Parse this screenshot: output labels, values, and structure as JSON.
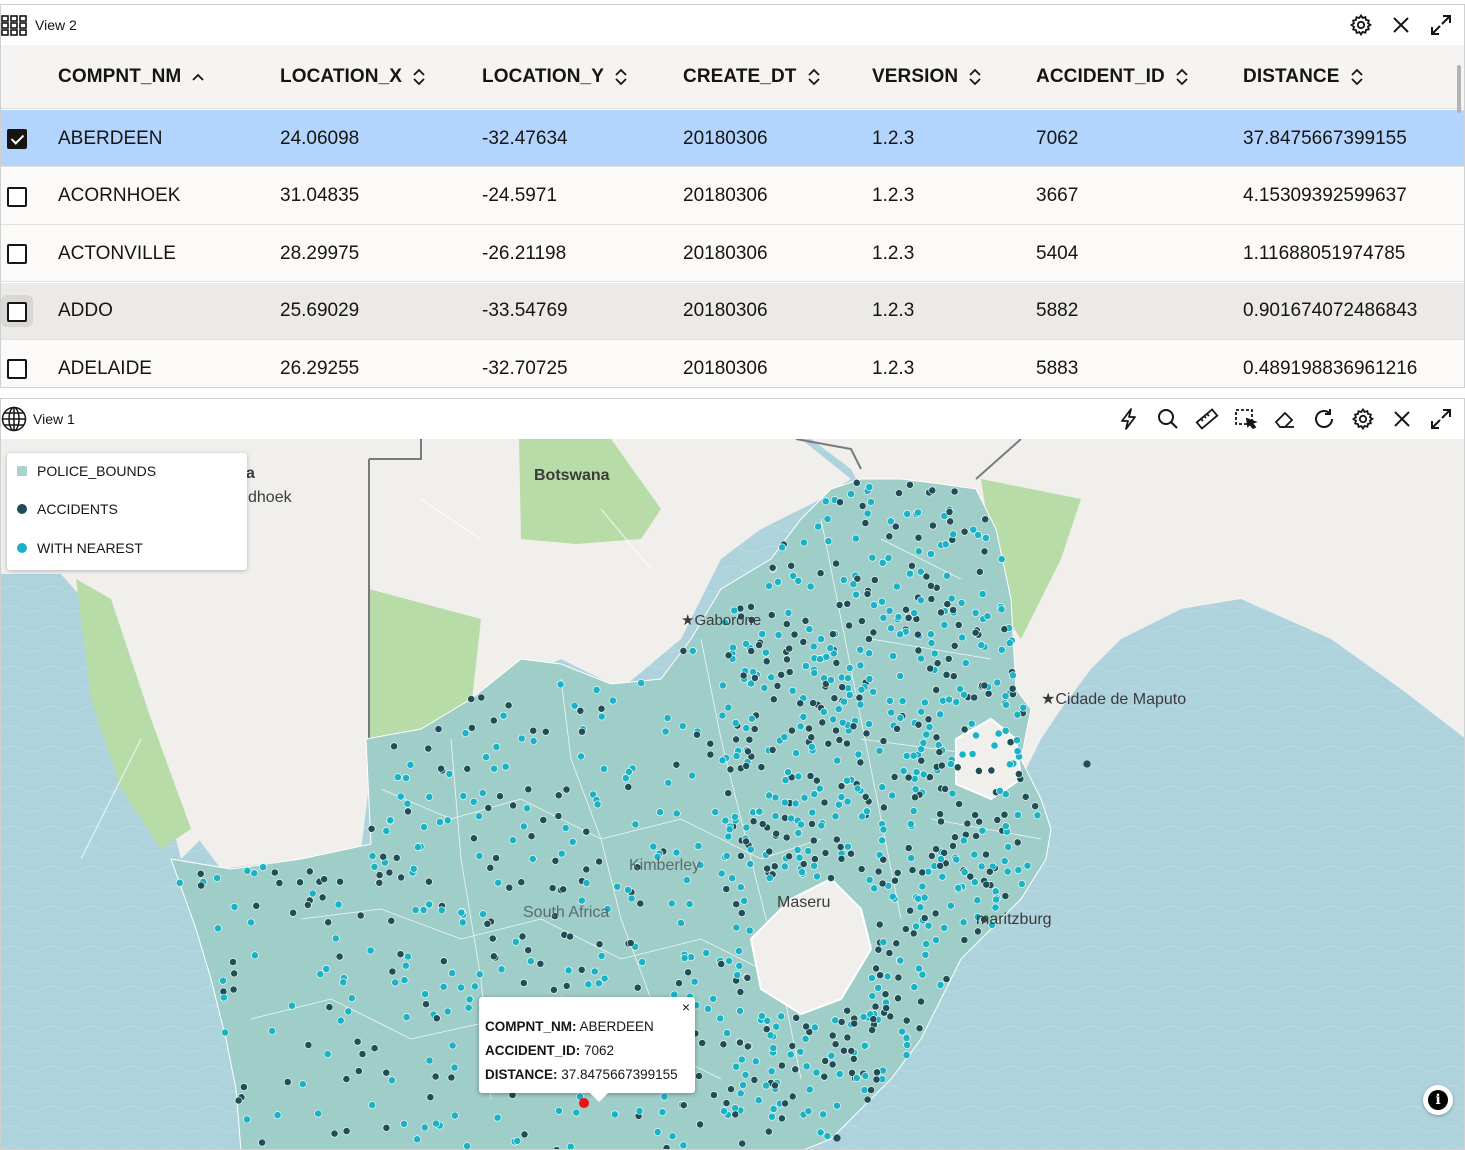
{
  "view2": {
    "title": "View 2",
    "columns": [
      "COMPNT_NM",
      "LOCATION_X",
      "LOCATION_Y",
      "CREATE_DT",
      "VERSION",
      "ACCIDENT_ID",
      "DISTANCE"
    ],
    "rows": [
      {
        "checked": true,
        "cells": [
          "ABERDEEN",
          "24.06098",
          "-32.47634",
          "20180306",
          "1.2.3",
          "7062",
          "37.8475667399155"
        ]
      },
      {
        "checked": false,
        "cells": [
          "ACORNHOEK",
          "31.04835",
          "-24.5971",
          "20180306",
          "1.2.3",
          "3667",
          "4.15309392599637"
        ]
      },
      {
        "checked": false,
        "cells": [
          "ACTONVILLE",
          "28.29975",
          "-26.21198",
          "20180306",
          "1.2.3",
          "5404",
          "1.11688051974785"
        ]
      },
      {
        "checked": false,
        "cells": [
          "ADDO",
          "25.69029",
          "-33.54769",
          "20180306",
          "1.2.3",
          "5882",
          "0.901674072486843"
        ]
      },
      {
        "checked": false,
        "cells": [
          "ADELAIDE",
          "26.29255",
          "-32.70725",
          "20180306",
          "1.2.3",
          "5883",
          "0.489198836961216"
        ]
      }
    ],
    "icons": [
      "settings-icon",
      "close-icon",
      "expand-icon"
    ]
  },
  "view1": {
    "title": "View 1",
    "toolbar_icons": [
      "lightning-icon",
      "search-icon",
      "ruler-icon",
      "select-area-icon",
      "eraser-icon",
      "refresh-icon",
      "settings-icon",
      "close-icon",
      "expand-icon"
    ],
    "legend": [
      {
        "label": "POLICE_BOUNDS",
        "color": "#a9d3cf"
      },
      {
        "label": "ACCIDENTS",
        "color": "#1f4e56"
      },
      {
        "label": "WITH NEAREST",
        "color": "#1ab2c5"
      }
    ],
    "map_labels": {
      "botswana": "Botswana",
      "gaborone": "★Gaborone",
      "maputo": "★Cidade de Maputo",
      "maseru": "Maseru",
      "pietermaritzburg": "maritzburg",
      "south_africa": "South Africa",
      "kimberley": "Kimberley",
      "windhoek_fragment": "dhoek",
      "namibia_fragment": "a"
    },
    "popup": {
      "compnt_label": "COMPNT_NM:",
      "compnt_value": "ABERDEEN",
      "accident_label": "ACCIDENT_ID:",
      "accident_value": "7062",
      "distance_label": "DISTANCE:",
      "distance_value": "37.8475667399155",
      "close": "×"
    },
    "info": "i",
    "colors": {
      "sea": "#aed3dd",
      "land": "#f1efec",
      "police": "#9fcdc8",
      "accident": "#1f4e56",
      "nearest": "#1ab2c5",
      "green": "#b8dca8"
    }
  }
}
